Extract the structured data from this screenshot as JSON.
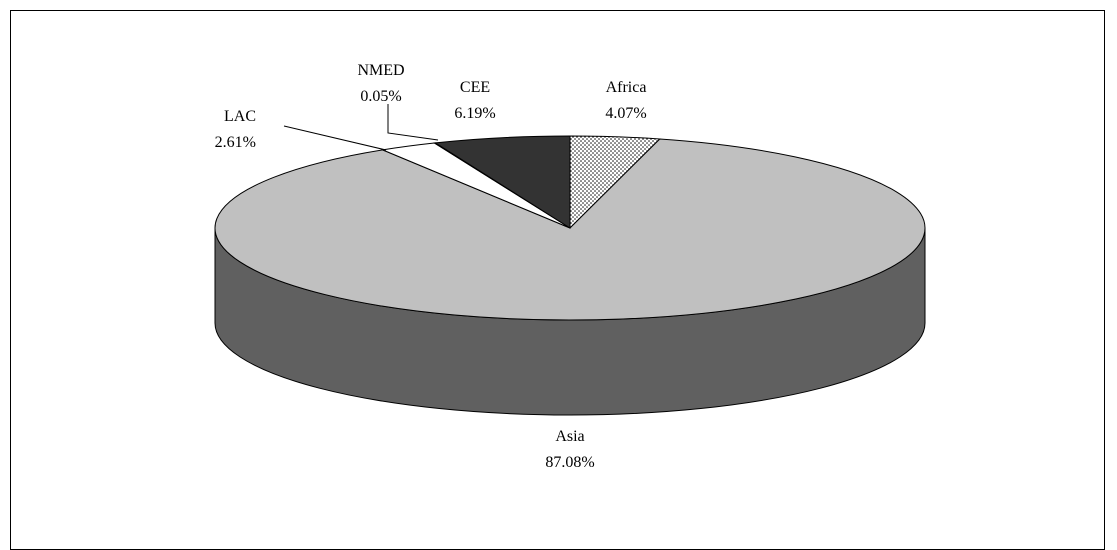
{
  "chart_data": {
    "type": "pie",
    "three_d": true,
    "title": "",
    "slices": [
      {
        "label": "Africa",
        "value": 4.07,
        "value_text": "4.07%",
        "color": "#f0f0f0",
        "pattern": "dotted"
      },
      {
        "label": "Asia",
        "value": 87.08,
        "value_text": "87.08%",
        "color": "#c0c0c0",
        "side_color": "#606060"
      },
      {
        "label": "LAC",
        "value": 2.61,
        "value_text": "2.61%",
        "color": "#ffffff"
      },
      {
        "label": "NMED",
        "value": 0.05,
        "value_text": "0.05%",
        "color": "#000000"
      },
      {
        "label": "CEE",
        "value": 6.19,
        "value_text": "6.19%",
        "color": "#333333"
      }
    ],
    "legend": "none",
    "start_direction": "top",
    "direction": "clockwise"
  }
}
